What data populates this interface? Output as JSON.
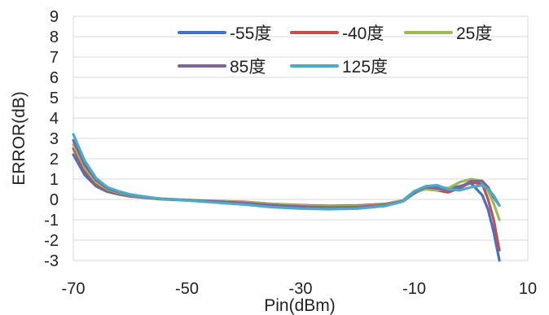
{
  "chart_data": {
    "type": "line",
    "xlabel": "Pin(dBm)",
    "ylabel": "ERROR(dB)",
    "xlim": [
      -70,
      10
    ],
    "ylim": [
      -3,
      9
    ],
    "xticks": [
      -70,
      -50,
      -30,
      -10,
      10
    ],
    "yticks": [
      -3,
      -2,
      -1,
      0,
      1,
      2,
      3,
      4,
      5,
      6,
      7,
      8,
      9
    ],
    "grid": "horizontal",
    "legend_position": "top-right",
    "series": [
      {
        "name": "-55度",
        "color": "#4472C4",
        "x": [
          -70,
          -68,
          -66,
          -64,
          -62,
          -60,
          -58,
          -55,
          -50,
          -45,
          -40,
          -35,
          -30,
          -25,
          -20,
          -15,
          -12,
          -10,
          -8,
          -6,
          -4,
          -2,
          0,
          2,
          3,
          4,
          5
        ],
        "y": [
          2.2,
          1.2,
          0.65,
          0.38,
          0.25,
          0.15,
          0.1,
          0.02,
          -0.05,
          -0.12,
          -0.2,
          -0.3,
          -0.38,
          -0.42,
          -0.4,
          -0.3,
          -0.1,
          0.3,
          0.55,
          0.6,
          0.55,
          0.65,
          0.8,
          0.2,
          -0.5,
          -1.6,
          -3.0
        ]
      },
      {
        "name": "-40度",
        "color": "#C0504D",
        "x": [
          -70,
          -68,
          -66,
          -64,
          -62,
          -60,
          -58,
          -55,
          -50,
          -45,
          -40,
          -35,
          -30,
          -25,
          -20,
          -15,
          -12,
          -10,
          -8,
          -6,
          -4,
          -2,
          0,
          2,
          3,
          4,
          5
        ],
        "y": [
          2.5,
          1.4,
          0.75,
          0.45,
          0.3,
          0.18,
          0.12,
          0.03,
          -0.03,
          -0.08,
          -0.12,
          -0.22,
          -0.28,
          -0.32,
          -0.3,
          -0.22,
          -0.05,
          0.4,
          0.6,
          0.45,
          0.35,
          0.55,
          0.85,
          0.75,
          0.0,
          -1.0,
          -2.5
        ]
      },
      {
        "name": "25度",
        "color": "#9BBB59",
        "x": [
          -70,
          -68,
          -66,
          -64,
          -62,
          -60,
          -58,
          -55,
          -50,
          -45,
          -40,
          -35,
          -30,
          -25,
          -20,
          -15,
          -12,
          -10,
          -8,
          -6,
          -4,
          -2,
          0,
          2,
          3,
          4,
          5
        ],
        "y": [
          2.7,
          1.55,
          0.85,
          0.5,
          0.33,
          0.2,
          0.13,
          0.04,
          -0.02,
          -0.08,
          -0.14,
          -0.22,
          -0.3,
          -0.35,
          -0.33,
          -0.25,
          -0.05,
          0.35,
          0.5,
          0.45,
          0.55,
          0.85,
          1.0,
          0.9,
          0.4,
          -0.2,
          -1.0
        ]
      },
      {
        "name": "85度",
        "color": "#8064A2",
        "x": [
          -70,
          -68,
          -66,
          -64,
          -62,
          -60,
          -58,
          -55,
          -50,
          -45,
          -40,
          -35,
          -30,
          -25,
          -20,
          -15,
          -12,
          -10,
          -8,
          -6,
          -4,
          -2,
          0,
          2,
          3,
          4,
          5
        ],
        "y": [
          2.9,
          1.7,
          0.95,
          0.55,
          0.36,
          0.22,
          0.14,
          0.05,
          -0.04,
          -0.1,
          -0.18,
          -0.28,
          -0.35,
          -0.4,
          -0.38,
          -0.28,
          -0.08,
          0.35,
          0.6,
          0.55,
          0.45,
          0.6,
          0.9,
          0.9,
          0.6,
          0.1,
          -0.3
        ]
      },
      {
        "name": "125度",
        "color": "#4BACC6",
        "x": [
          -70,
          -68,
          -66,
          -64,
          -62,
          -60,
          -58,
          -55,
          -50,
          -45,
          -40,
          -35,
          -30,
          -25,
          -20,
          -15,
          -12,
          -10,
          -8,
          -6,
          -4,
          -2,
          0,
          2,
          3,
          4,
          5
        ],
        "y": [
          3.2,
          1.9,
          1.05,
          0.6,
          0.4,
          0.25,
          0.16,
          0.05,
          -0.05,
          -0.15,
          -0.25,
          -0.38,
          -0.45,
          -0.48,
          -0.45,
          -0.32,
          -0.1,
          0.4,
          0.65,
          0.7,
          0.5,
          0.45,
          0.6,
          0.7,
          0.5,
          0.2,
          -0.3
        ]
      }
    ]
  }
}
